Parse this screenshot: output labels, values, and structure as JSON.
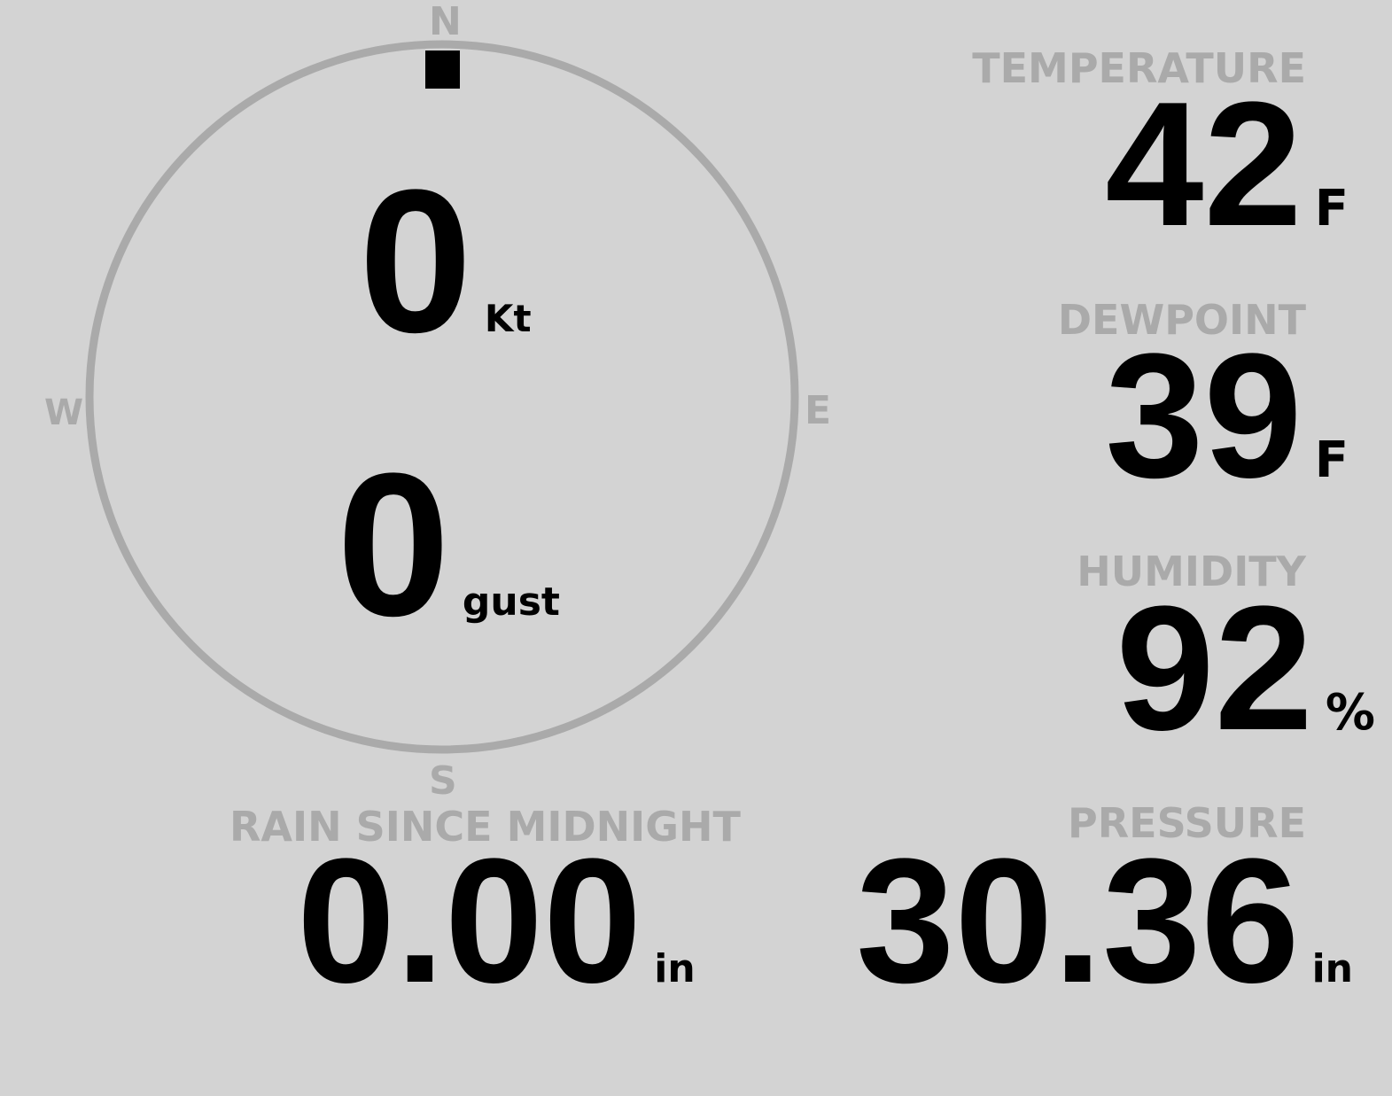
{
  "wind": {
    "compass": {
      "north": "N",
      "south": "S",
      "east": "E",
      "west": "W"
    },
    "direction_deg": 0,
    "speed": "0",
    "speed_unit": "Kt",
    "gust": "0",
    "gust_unit": "gust"
  },
  "temperature": {
    "label": "TEMPERATURE",
    "value": "42",
    "unit": "F"
  },
  "dewpoint": {
    "label": "DEWPOINT",
    "value": "39",
    "unit": "F"
  },
  "humidity": {
    "label": "HUMIDITY",
    "value": "92",
    "unit": "%"
  },
  "rain": {
    "label": "RAIN SINCE MIDNIGHT",
    "value": "0.00",
    "unit": "in"
  },
  "pressure": {
    "label": "PRESSURE",
    "value": "30.36",
    "unit": "in"
  },
  "colors": {
    "background": "#d3d3d3",
    "label": "#aaaaaa",
    "value": "#000000"
  }
}
